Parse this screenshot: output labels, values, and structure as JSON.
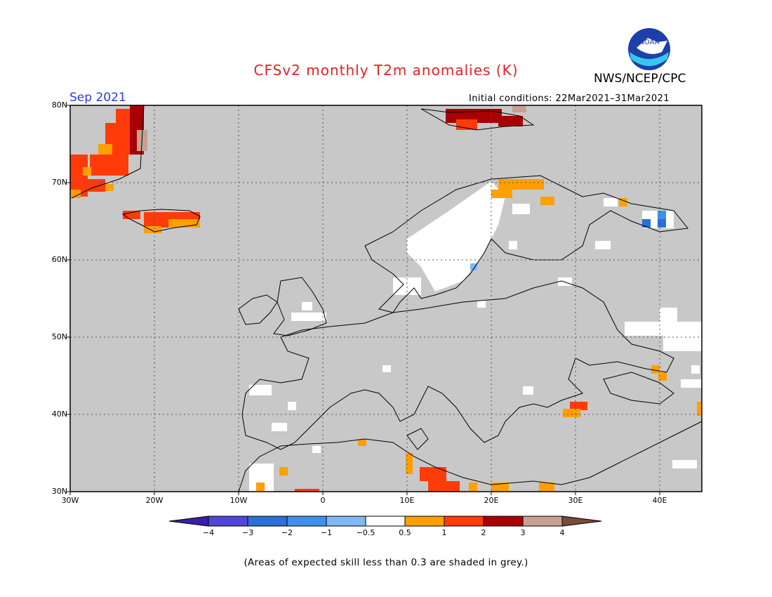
{
  "header": {
    "title": "CFSv2 monthly T2m anomalies (K)",
    "agency": "NWS/NCEP/CPC",
    "month": "Sep 2021",
    "initial_conditions": "Initial conditions: 22Mar2021–31Mar2021",
    "logo_text": "NOAA"
  },
  "map": {
    "lat_labels": [
      "80N",
      "70N",
      "60N",
      "50N",
      "40N",
      "30N"
    ],
    "lon_labels": [
      "30W",
      "20W",
      "10W",
      "0",
      "10E",
      "20E",
      "30E",
      "40E"
    ],
    "background_color": "#c8c8c8"
  },
  "colorbar": {
    "labels": [
      "−4",
      "−3",
      "−2",
      "−1",
      "−0.5",
      "0.5",
      "1",
      "2",
      "3",
      "4"
    ],
    "colors": [
      "#3a1fa6",
      "#5146d8",
      "#2c6fd6",
      "#3e90ec",
      "#7fb8f2",
      "#ffffff",
      "#ff9f00",
      "#ff3b0a",
      "#a80000",
      "#c7a092",
      "#7a4a3a"
    ]
  },
  "footnote": "(Areas of expected skill less than 0.3 are shaded in grey.)"
}
